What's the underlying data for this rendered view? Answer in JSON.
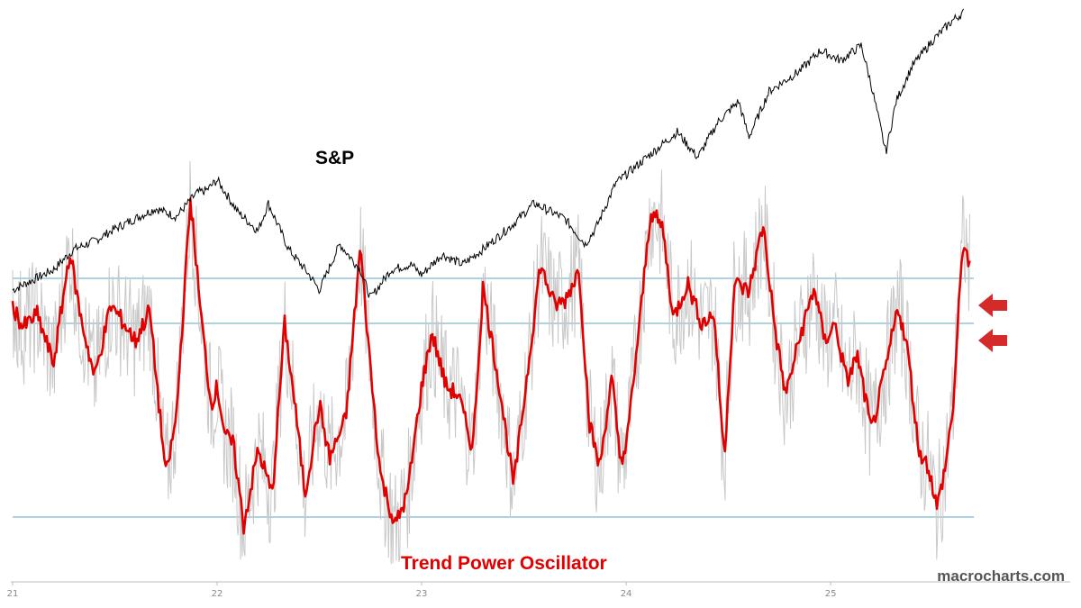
{
  "watermark": "macrocharts.com",
  "colors": {
    "price_line": "#000000",
    "oscillator_smooth": "#e00000",
    "oscillator_raw": "#c8c8c8",
    "reference_lines": "#7fb8cc",
    "arrows": "#d42a2a",
    "axis": "#bbbbbb"
  },
  "chart_data": {
    "type": "line",
    "x_tick_labels": [
      "21",
      "22",
      "23",
      "24",
      "25"
    ],
    "x_range": [
      2021.0,
      2025.7
    ],
    "grid": false,
    "legend": "none",
    "annotations": [
      {
        "text": "S&P",
        "series": "price"
      },
      {
        "text": "Trend Power Oscillator",
        "series": "oscillator"
      },
      {
        "marker": "arrow-left",
        "count": 2,
        "points_to": "latest oscillator reading"
      }
    ],
    "price": {
      "label": "S&P",
      "points": [
        [
          2021.0,
          3700
        ],
        [
          2021.1,
          3800
        ],
        [
          2021.2,
          3900
        ],
        [
          2021.3,
          4100
        ],
        [
          2021.4,
          4180
        ],
        [
          2021.5,
          4300
        ],
        [
          2021.6,
          4400
        ],
        [
          2021.7,
          4500
        ],
        [
          2021.8,
          4420
        ],
        [
          2021.9,
          4650
        ],
        [
          2021.95,
          4680
        ],
        [
          2022.0,
          4780
        ],
        [
          2022.1,
          4470
        ],
        [
          2022.2,
          4280
        ],
        [
          2022.25,
          4550
        ],
        [
          2022.35,
          4100
        ],
        [
          2022.45,
          3850
        ],
        [
          2022.5,
          3700
        ],
        [
          2022.6,
          4150
        ],
        [
          2022.7,
          3900
        ],
        [
          2022.75,
          3620
        ],
        [
          2022.85,
          3900
        ],
        [
          2022.95,
          3950
        ],
        [
          2023.0,
          3850
        ],
        [
          2023.1,
          4050
        ],
        [
          2023.2,
          3950
        ],
        [
          2023.3,
          4100
        ],
        [
          2023.45,
          4350
        ],
        [
          2023.55,
          4550
        ],
        [
          2023.7,
          4400
        ],
        [
          2023.8,
          4150
        ],
        [
          2023.85,
          4300
        ],
        [
          2023.95,
          4750
        ],
        [
          2024.1,
          5000
        ],
        [
          2024.25,
          5250
        ],
        [
          2024.35,
          5000
        ],
        [
          2024.45,
          5350
        ],
        [
          2024.55,
          5550
        ],
        [
          2024.6,
          5200
        ],
        [
          2024.7,
          5650
        ],
        [
          2024.85,
          5850
        ],
        [
          2024.95,
          6050
        ],
        [
          2025.05,
          5950
        ],
        [
          2025.15,
          6100
        ],
        [
          2025.2,
          5700
        ],
        [
          2025.27,
          5050
        ],
        [
          2025.32,
          5550
        ],
        [
          2025.4,
          5900
        ],
        [
          2025.5,
          6150
        ],
        [
          2025.6,
          6350
        ],
        [
          2025.65,
          6420
        ]
      ]
    },
    "oscillator": {
      "label": "Trend Power Oscillator",
      "reference_levels": [
        86,
        76,
        33
      ],
      "smoothed": [
        [
          2021.0,
          80
        ],
        [
          2021.05,
          75
        ],
        [
          2021.12,
          78
        ],
        [
          2021.2,
          67
        ],
        [
          2021.28,
          92
        ],
        [
          2021.33,
          78
        ],
        [
          2021.4,
          64
        ],
        [
          2021.48,
          80
        ],
        [
          2021.53,
          77
        ],
        [
          2021.6,
          72
        ],
        [
          2021.67,
          79
        ],
        [
          2021.75,
          42
        ],
        [
          2021.8,
          55
        ],
        [
          2021.87,
          104
        ],
        [
          2021.92,
          78
        ],
        [
          2021.97,
          58
        ],
        [
          2022.0,
          62
        ],
        [
          2022.04,
          51
        ],
        [
          2022.08,
          49
        ],
        [
          2022.13,
          31
        ],
        [
          2022.2,
          48
        ],
        [
          2022.27,
          38
        ],
        [
          2022.33,
          76
        ],
        [
          2022.38,
          58
        ],
        [
          2022.43,
          38
        ],
        [
          2022.5,
          58
        ],
        [
          2022.55,
          46
        ],
        [
          2022.63,
          55
        ],
        [
          2022.7,
          93
        ],
        [
          2022.75,
          66
        ],
        [
          2022.8,
          42
        ],
        [
          2022.87,
          31
        ],
        [
          2022.93,
          38
        ],
        [
          2023.0,
          62
        ],
        [
          2023.05,
          74
        ],
        [
          2023.12,
          62
        ],
        [
          2023.18,
          60
        ],
        [
          2023.25,
          48
        ],
        [
          2023.3,
          84
        ],
        [
          2023.38,
          62
        ],
        [
          2023.45,
          40
        ],
        [
          2023.52,
          66
        ],
        [
          2023.58,
          89
        ],
        [
          2023.65,
          80
        ],
        [
          2023.7,
          81
        ],
        [
          2023.77,
          88
        ],
        [
          2023.82,
          54
        ],
        [
          2023.87,
          44
        ],
        [
          2023.93,
          64
        ],
        [
          2023.97,
          46
        ],
        [
          2024.0,
          48
        ],
        [
          2024.07,
          78
        ],
        [
          2024.12,
          101
        ],
        [
          2024.18,
          97
        ],
        [
          2024.23,
          77
        ],
        [
          2024.3,
          85
        ],
        [
          2024.37,
          76
        ],
        [
          2024.43,
          78
        ],
        [
          2024.48,
          46
        ],
        [
          2024.53,
          85
        ],
        [
          2024.6,
          83
        ],
        [
          2024.67,
          98
        ],
        [
          2024.73,
          74
        ],
        [
          2024.78,
          60
        ],
        [
          2024.85,
          73
        ],
        [
          2024.92,
          84
        ],
        [
          2024.97,
          72
        ],
        [
          2025.02,
          76
        ],
        [
          2025.08,
          63
        ],
        [
          2025.13,
          69
        ],
        [
          2025.2,
          52
        ],
        [
          2025.27,
          66
        ],
        [
          2025.33,
          80
        ],
        [
          2025.38,
          69
        ],
        [
          2025.43,
          48
        ],
        [
          2025.48,
          44
        ],
        [
          2025.52,
          35
        ],
        [
          2025.56,
          44
        ],
        [
          2025.6,
          58
        ],
        [
          2025.63,
          82
        ],
        [
          2025.65,
          95
        ],
        [
          2025.68,
          88
        ]
      ]
    }
  }
}
